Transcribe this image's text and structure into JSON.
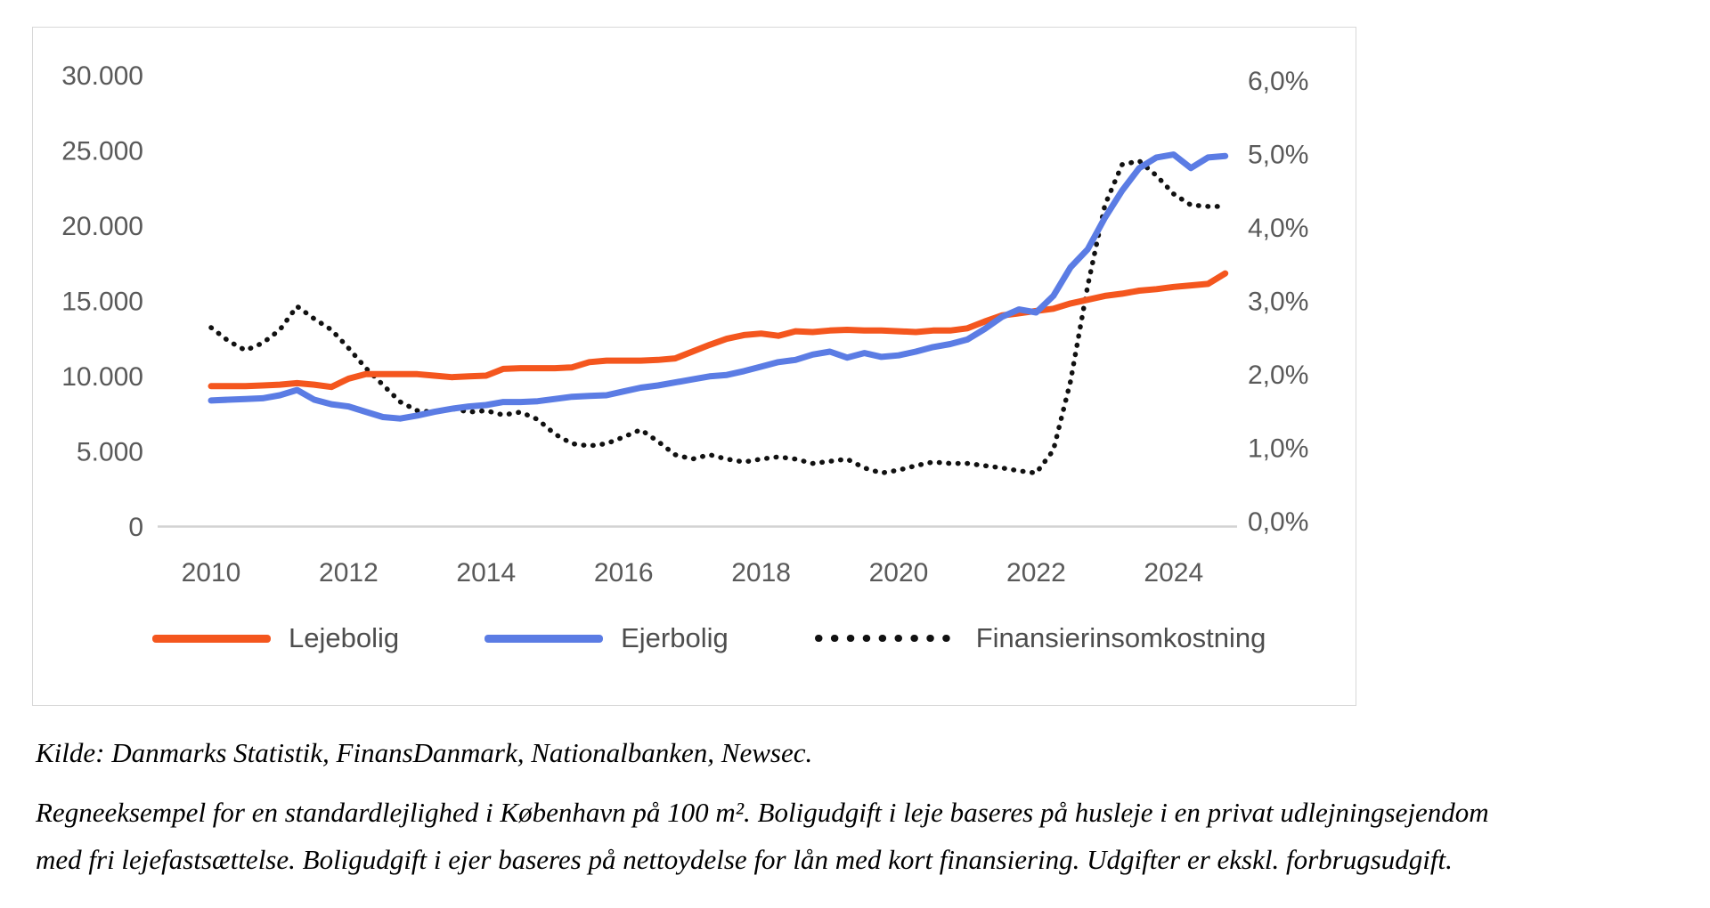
{
  "chart": {
    "left_axis_ticks": [
      "30.000",
      "25.000",
      "20.000",
      "15.000",
      "10.000",
      "5.000",
      "0"
    ],
    "right_axis_ticks": [
      "6,0%",
      "5,0%",
      "4,0%",
      "3,0%",
      "2,0%",
      "1,0%",
      "0,0%"
    ],
    "x_axis_ticks": [
      "2010",
      "2012",
      "2014",
      "2016",
      "2018",
      "2020",
      "2022",
      "2024"
    ],
    "legend": [
      {
        "label": "Lejebolig",
        "color": "#f4561e",
        "style": "solid"
      },
      {
        "label": "Ejerbolig",
        "color": "#5b7ce4",
        "style": "solid"
      },
      {
        "label": "Finansierinsomkostning",
        "color": "#111111",
        "style": "dotted"
      }
    ],
    "colors": {
      "axis_line": "#d2d2d2",
      "tick_text": "#595959"
    }
  },
  "chart_data": {
    "type": "line",
    "x_start": 2010,
    "x_step": 0.25,
    "x_unit": "quarter",
    "left_ylim": [
      0,
      30000
    ],
    "right_ylim": [
      0,
      6
    ],
    "left_tick_values": [
      0,
      5000,
      10000,
      15000,
      20000,
      25000,
      30000
    ],
    "right_tick_values": [
      0,
      1,
      2,
      3,
      4,
      5,
      6
    ],
    "grid": false,
    "legend_position": "bottom",
    "series": [
      {
        "name": "Lejebolig",
        "axis": "left",
        "color": "#f4561e",
        "dash": "solid",
        "values": [
          9300,
          9300,
          9300,
          9350,
          9400,
          9500,
          9400,
          9250,
          9800,
          10100,
          10100,
          10100,
          10100,
          10000,
          9900,
          9950,
          10000,
          10450,
          10500,
          10500,
          10500,
          10550,
          10900,
          11000,
          11000,
          11000,
          11050,
          11150,
          11600,
          12050,
          12450,
          12700,
          12800,
          12650,
          12950,
          12900,
          13000,
          13050,
          13000,
          13000,
          12950,
          12900,
          13000,
          13000,
          13150,
          13600,
          14000,
          14150,
          14300,
          14450,
          14800,
          15050,
          15300,
          15450,
          15650,
          15750,
          15900,
          16000,
          16100,
          16800
        ]
      },
      {
        "name": "Ejerbolig",
        "axis": "left",
        "color": "#5b7ce4",
        "dash": "solid",
        "values": [
          8350,
          8400,
          8450,
          8500,
          8700,
          9050,
          8400,
          8100,
          7950,
          7600,
          7250,
          7150,
          7350,
          7600,
          7800,
          7950,
          8050,
          8250,
          8250,
          8300,
          8450,
          8600,
          8650,
          8700,
          8950,
          9200,
          9350,
          9550,
          9750,
          9950,
          10050,
          10300,
          10600,
          10900,
          11050,
          11400,
          11600,
          11200,
          11500,
          11250,
          11350,
          11600,
          11900,
          12100,
          12400,
          13100,
          13900,
          14400,
          14200,
          15300,
          17200,
          18400,
          20500,
          22300,
          23800,
          24500,
          24700,
          23800,
          24500,
          24600
        ]
      },
      {
        "name": "Finansierinsomkostning",
        "axis": "right",
        "color": "#111111",
        "dash": "dotted",
        "values": [
          2.63,
          2.45,
          2.32,
          2.42,
          2.6,
          2.92,
          2.75,
          2.6,
          2.35,
          2.08,
          1.85,
          1.62,
          1.5,
          1.48,
          1.53,
          1.48,
          1.5,
          1.44,
          1.48,
          1.38,
          1.18,
          1.05,
          1.02,
          1.05,
          1.14,
          1.24,
          1.08,
          0.9,
          0.84,
          0.9,
          0.84,
          0.8,
          0.84,
          0.87,
          0.84,
          0.78,
          0.81,
          0.84,
          0.72,
          0.65,
          0.69,
          0.75,
          0.8,
          0.78,
          0.78,
          0.75,
          0.72,
          0.68,
          0.65,
          0.96,
          1.9,
          3.2,
          4.3,
          4.85,
          4.9,
          4.7,
          4.45,
          4.3,
          4.28,
          4.28
        ]
      }
    ]
  },
  "source_line": "Kilde: Danmarks Statistik, FinansDanmark, Nationalbanken, Newsec.",
  "note_lines": [
    "Regneeksempel for en standardlejlighed i København på 100 m². Boligudgift i leje baseres på husleje i en privat udlejningsejendom",
    "med fri lejefastsættelse. Boligudgift i ejer baseres på nettoydelse for lån med kort finansiering. Udgifter er ekskl. forbrugsudgift."
  ]
}
